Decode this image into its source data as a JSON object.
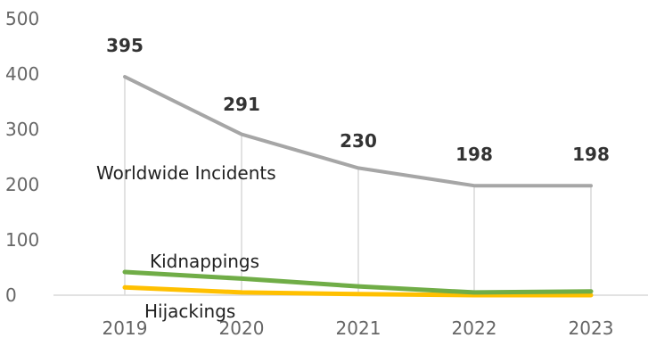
{
  "chart_data": {
    "type": "line",
    "x": [
      "2019",
      "2020",
      "2021",
      "2022",
      "2023"
    ],
    "ylim": [
      0,
      500
    ],
    "yticks": [
      "0",
      "100",
      "200",
      "300",
      "400",
      "500"
    ],
    "grid": "vertical drop lines from total series",
    "series": [
      {
        "name": "Worldwide Incidents",
        "values": [
          395,
          291,
          230,
          198,
          198
        ],
        "color": "#a6a6a6",
        "data_labels": [
          "395",
          "291",
          "230",
          "198",
          "198"
        ]
      },
      {
        "name": "Kidnappings",
        "values": [
          42,
          30,
          16,
          5,
          7
        ],
        "color": "#70ad47"
      },
      {
        "name": "Hijackings",
        "values": [
          14,
          5,
          2,
          0,
          0
        ],
        "color": "#ffc000"
      }
    ]
  }
}
